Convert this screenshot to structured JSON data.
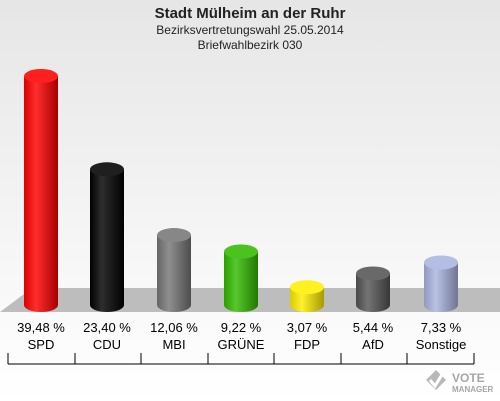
{
  "header": {
    "title": "Stadt Mülheim an der Ruhr",
    "subtitle": "Bezirksvertretungswahl 25.05.2014",
    "subtitle2": "Briefwahlbezirk 030"
  },
  "logo": {
    "line1": "VOTE",
    "line2": "MANAGER",
    "icon": "vote-manager-logo"
  },
  "chart_data": {
    "type": "bar",
    "title": "Stadt Mülheim an der Ruhr",
    "categories": [
      "SPD",
      "CDU",
      "MBI",
      "GRÜNE",
      "FDP",
      "AfD",
      "Sonstige"
    ],
    "values": [
      39.48,
      23.4,
      12.06,
      9.22,
      3.07,
      5.44,
      7.33
    ],
    "value_labels": [
      "39,48 %",
      "23,40 %",
      "12,06 %",
      "9,22 %",
      "3,07 %",
      "5,44 %",
      "7,33 %"
    ],
    "colors": [
      "#ff0000",
      "#000000",
      "#777777",
      "#33bb00",
      "#ffee00",
      "#555555",
      "#aab4e0"
    ],
    "ylim": [
      0,
      40
    ],
    "grid": false,
    "legend": "none"
  }
}
